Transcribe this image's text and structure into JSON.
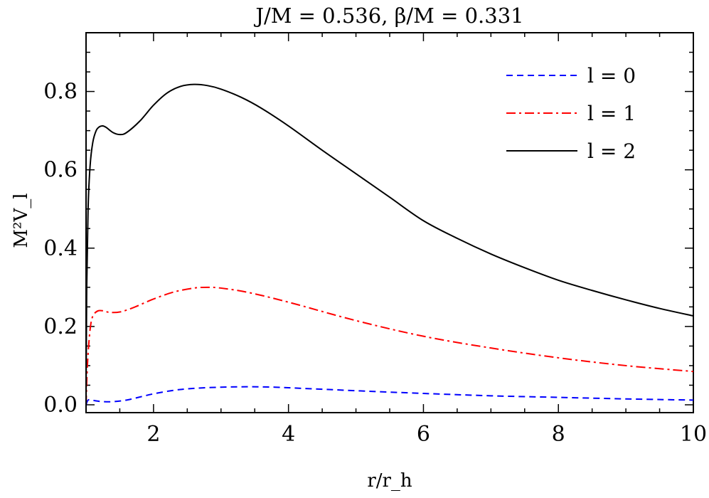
{
  "chart_data": {
    "type": "line",
    "title": "J/M = 0.536, β/M = 0.331",
    "xlabel": "r/r_h",
    "ylabel": "M²V_l",
    "xlim": [
      1,
      10
    ],
    "ylim": [
      -0.02,
      0.95
    ],
    "x_ticks": [
      2,
      4,
      6,
      8,
      10
    ],
    "x_tick_labels": [
      "2",
      "4",
      "6",
      "8",
      "10"
    ],
    "y_ticks": [
      0.0,
      0.2,
      0.4,
      0.6,
      0.8
    ],
    "y_tick_labels": [
      "0.0",
      "0.2",
      "0.4",
      "0.6",
      "0.8"
    ],
    "grid": false,
    "legend_position": "top-right",
    "series": [
      {
        "name": "l = 0",
        "color": "#0000ff",
        "dash": "dashed",
        "x": [
          1.0,
          1.03,
          1.08,
          1.15,
          1.25,
          1.4,
          1.6,
          1.8,
          2.0,
          2.3,
          2.6,
          3.0,
          3.4,
          3.8,
          4.2,
          5.0,
          6.0,
          7.0,
          8.0,
          9.0,
          10.0
        ],
        "y": [
          0.0,
          0.012,
          0.012,
          0.01,
          0.008,
          0.008,
          0.012,
          0.02,
          0.028,
          0.037,
          0.042,
          0.045,
          0.046,
          0.045,
          0.042,
          0.036,
          0.029,
          0.023,
          0.019,
          0.015,
          0.012
        ]
      },
      {
        "name": "l = 1",
        "color": "#ff0000",
        "dash": "dashdot",
        "x": [
          1.0,
          1.02,
          1.05,
          1.08,
          1.12,
          1.18,
          1.25,
          1.35,
          1.5,
          1.7,
          2.0,
          2.3,
          2.6,
          2.8,
          3.0,
          3.4,
          4.0,
          5.0,
          6.0,
          7.0,
          8.0,
          9.0,
          10.0
        ],
        "y": [
          0.0,
          0.1,
          0.175,
          0.215,
          0.232,
          0.24,
          0.24,
          0.236,
          0.237,
          0.248,
          0.27,
          0.288,
          0.298,
          0.3,
          0.298,
          0.287,
          0.262,
          0.215,
          0.175,
          0.145,
          0.12,
          0.1,
          0.085
        ]
      },
      {
        "name": "l = 2",
        "color": "#000000",
        "dash": "solid",
        "x": [
          1.0,
          1.01,
          1.03,
          1.06,
          1.1,
          1.15,
          1.2,
          1.25,
          1.3,
          1.4,
          1.5,
          1.6,
          1.8,
          2.0,
          2.2,
          2.4,
          2.6,
          2.8,
          3.0,
          3.3,
          3.6,
          4.0,
          4.5,
          5.0,
          5.5,
          6.0,
          6.5,
          7.0,
          7.5,
          8.0,
          8.5,
          9.0,
          9.5,
          10.0
        ],
        "y": [
          0.0,
          0.3,
          0.5,
          0.61,
          0.67,
          0.7,
          0.71,
          0.712,
          0.708,
          0.695,
          0.69,
          0.695,
          0.725,
          0.765,
          0.796,
          0.813,
          0.818,
          0.815,
          0.806,
          0.785,
          0.757,
          0.712,
          0.65,
          0.59,
          0.53,
          0.47,
          0.425,
          0.385,
          0.35,
          0.318,
          0.292,
          0.268,
          0.246,
          0.227
        ]
      }
    ]
  }
}
